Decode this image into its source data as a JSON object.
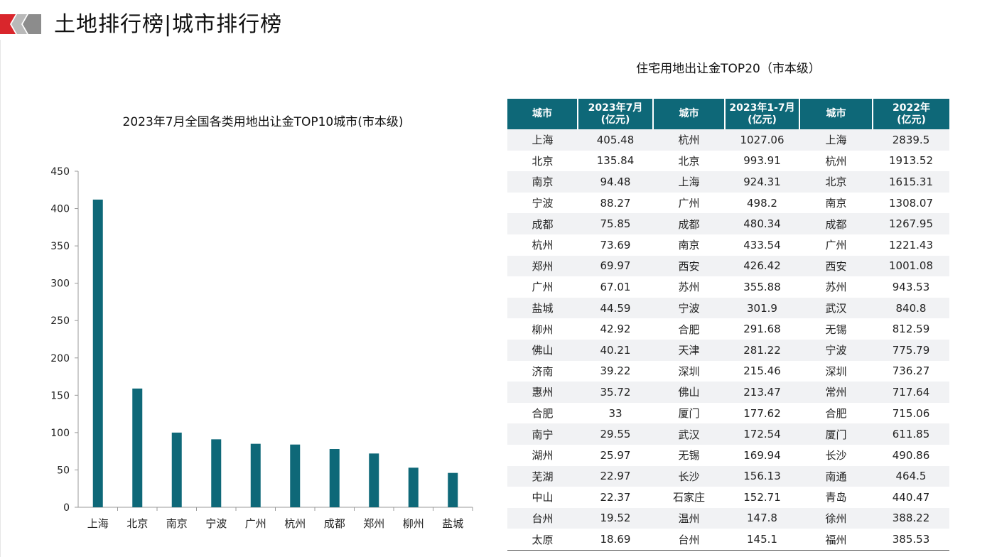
{
  "header": {
    "title": "土地排行榜|城市排行榜"
  },
  "colors": {
    "accent_red": "#d9262c",
    "bar_teal": "#0e6878",
    "header_teal": "#0e6878",
    "row_alt": "#f1f2f4"
  },
  "chart_data": {
    "type": "bar",
    "title": "2023年7月全国各类用地出让金TOP10城市(市本级)",
    "categories": [
      "上海",
      "北京",
      "南京",
      "宁波",
      "广州",
      "杭州",
      "成都",
      "郑州",
      "柳州",
      "盐城"
    ],
    "values": [
      412,
      159,
      100,
      91,
      85,
      84,
      78,
      72,
      53,
      46
    ],
    "ylim": [
      0,
      450
    ],
    "yticks": [
      "0",
      "50",
      "100",
      "150",
      "200",
      "250",
      "300",
      "350",
      "400",
      "450"
    ],
    "xlabel": "",
    "ylabel": "",
    "grid": false,
    "legend": "none"
  },
  "table": {
    "title": "住宅用地出让金TOP20（市本级）",
    "headers": [
      [
        "城市"
      ],
      [
        "2023年7月",
        "(亿元)"
      ],
      [
        "城市"
      ],
      [
        "2023年1-7月",
        "(亿元)"
      ],
      [
        "城市"
      ],
      [
        "2022年",
        "(亿元)"
      ]
    ],
    "rows": [
      [
        "上海",
        "405.48",
        "杭州",
        "1027.06",
        "上海",
        "2839.5"
      ],
      [
        "北京",
        "135.84",
        "北京",
        "993.91",
        "杭州",
        "1913.52"
      ],
      [
        "南京",
        "94.48",
        "上海",
        "924.31",
        "北京",
        "1615.31"
      ],
      [
        "宁波",
        "88.27",
        "广州",
        "498.2",
        "南京",
        "1308.07"
      ],
      [
        "成都",
        "75.85",
        "成都",
        "480.34",
        "成都",
        "1267.95"
      ],
      [
        "杭州",
        "73.69",
        "南京",
        "433.54",
        "广州",
        "1221.43"
      ],
      [
        "郑州",
        "69.97",
        "西安",
        "426.42",
        "西安",
        "1001.08"
      ],
      [
        "广州",
        "67.01",
        "苏州",
        "355.88",
        "苏州",
        "943.53"
      ],
      [
        "盐城",
        "44.59",
        "宁波",
        "301.9",
        "武汉",
        "840.8"
      ],
      [
        "柳州",
        "42.92",
        "合肥",
        "291.68",
        "无锡",
        "812.59"
      ],
      [
        "佛山",
        "40.21",
        "天津",
        "281.22",
        "宁波",
        "775.79"
      ],
      [
        "济南",
        "39.22",
        "深圳",
        "215.46",
        "深圳",
        "736.27"
      ],
      [
        "惠州",
        "35.72",
        "佛山",
        "213.47",
        "常州",
        "717.64"
      ],
      [
        "合肥",
        "33",
        "厦门",
        "177.62",
        "合肥",
        "715.06"
      ],
      [
        "南宁",
        "29.55",
        "武汉",
        "172.54",
        "厦门",
        "611.85"
      ],
      [
        "湖州",
        "25.97",
        "无锡",
        "169.94",
        "长沙",
        "490.86"
      ],
      [
        "芜湖",
        "22.97",
        "长沙",
        "156.13",
        "南通",
        "464.5"
      ],
      [
        "中山",
        "22.37",
        "石家庄",
        "152.71",
        "青岛",
        "440.47"
      ],
      [
        "台州",
        "19.52",
        "温州",
        "147.8",
        "徐州",
        "388.22"
      ],
      [
        "太原",
        "18.69",
        "台州",
        "145.1",
        "福州",
        "385.53"
      ]
    ]
  }
}
